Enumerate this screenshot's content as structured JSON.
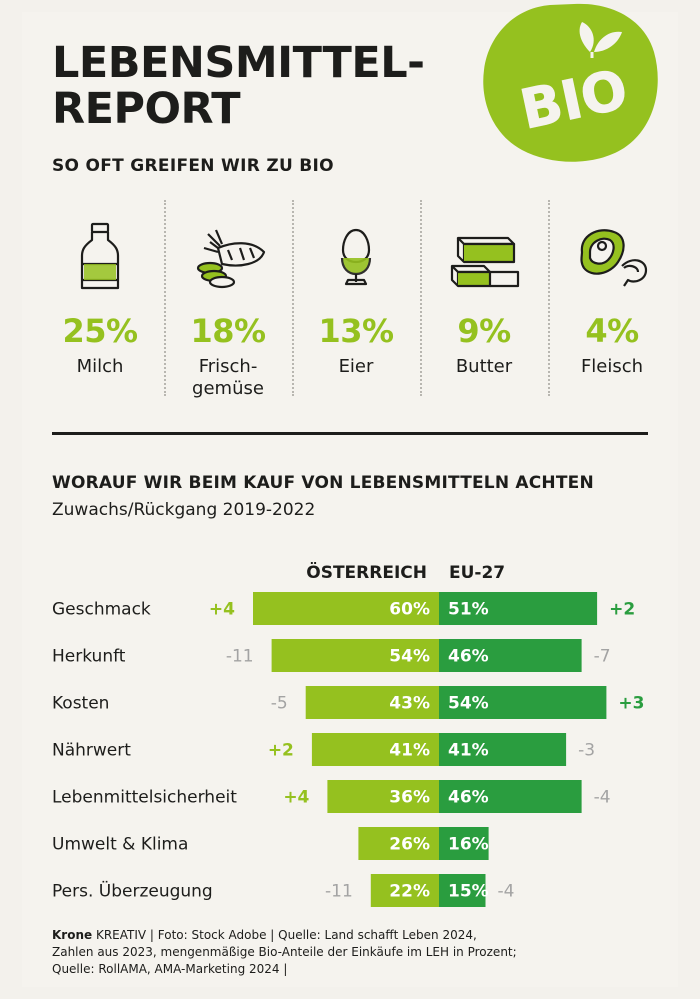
{
  "header": {
    "title_lines": [
      "LEBENSMITTEL-",
      "REPORT"
    ],
    "subtitle": "SO OFT GREIFEN WIR ZU BIO",
    "badge_text": "BIO"
  },
  "products": [
    {
      "icon": "milk-bottle-icon",
      "pct": "25%",
      "label": "Milch"
    },
    {
      "icon": "vegetables-icon",
      "pct": "18%",
      "label": "Frisch-\ngemüse"
    },
    {
      "icon": "egg-icon",
      "pct": "13%",
      "label": "Eier"
    },
    {
      "icon": "butter-icon",
      "pct": "9%",
      "label": "Butter"
    },
    {
      "icon": "meat-icon",
      "pct": "4%",
      "label": "Fleisch"
    }
  ],
  "colors": {
    "austria": "#95c11f",
    "eu": "#2a9d3f",
    "positive_change": "#2a9d3f",
    "negative_change": "#a3a3a3",
    "austria_change_positive": "#95c11f"
  },
  "chart_data": {
    "type": "bar",
    "title": "WORAUF WIR BEIM KAUF VON LEBENSMITTELN ACHTEN",
    "subtitle": "Zuwachs/Rückgang 2019-2022",
    "categories": [
      "Geschmack",
      "Herkunft",
      "Kosten",
      "Nährwert",
      "Lebenmittelsicherheit",
      "Umwelt & Klima",
      "Pers. Überzeugung"
    ],
    "series": [
      {
        "name": "ÖSTERREICH",
        "values": [
          60,
          54,
          43,
          41,
          36,
          26,
          22
        ],
        "changes": [
          "+4",
          "-11",
          "-5",
          "+2",
          "+4",
          "",
          "-11"
        ]
      },
      {
        "name": "EU-27",
        "values": [
          51,
          46,
          54,
          41,
          46,
          16,
          15
        ],
        "changes": [
          "+2",
          "-7",
          "+3",
          "-3",
          "-4",
          "",
          "-4"
        ]
      }
    ],
    "unit": "%"
  },
  "footer": {
    "brand": "Krone",
    "line1": " KREATIV  |  Foto: Stock Adobe  |  Quelle: Land schafft Leben 2024,",
    "line2": "Zahlen aus 2023, mengenmäßige Bio-Anteile der Einkäufe im LEH in Prozent;",
    "line3": "Quelle: RollAMA, AMA-Marketing 2024  |"
  }
}
